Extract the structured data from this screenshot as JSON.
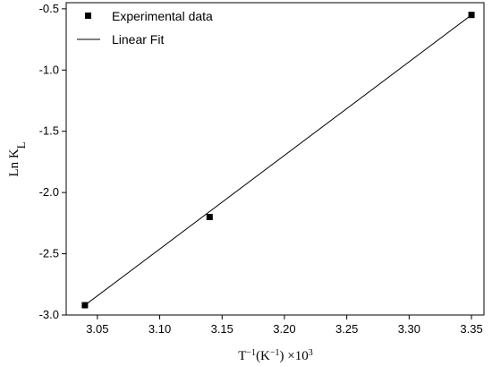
{
  "chart_data": {
    "type": "scatter",
    "title": "",
    "xlabel": "T⁻¹(K⁻¹) ×10³",
    "ylabel": "Ln K_L",
    "xlim": [
      3.025,
      3.36
    ],
    "ylim": [
      -3.0,
      -0.45
    ],
    "x_ticks": [
      "3.05",
      "3.10",
      "3.15",
      "3.20",
      "3.25",
      "3.30",
      "3.35"
    ],
    "y_ticks": [
      "-3.0",
      "-2.5",
      "-2.0",
      "-1.5",
      "-1.0",
      "-0.5"
    ],
    "grid": false,
    "legend_position": "top-left",
    "series": [
      {
        "name": "Experimental data",
        "kind": "scatter",
        "marker": "square",
        "color": "#000000",
        "points": [
          {
            "x": 3.04,
            "y": -2.92
          },
          {
            "x": 3.14,
            "y": -2.2
          },
          {
            "x": 3.35,
            "y": -0.55
          }
        ]
      },
      {
        "name": "Linear Fit",
        "kind": "line",
        "color": "#000000",
        "points": [
          {
            "x": 3.04,
            "y": -2.92
          },
          {
            "x": 3.35,
            "y": -0.55
          }
        ]
      }
    ]
  }
}
